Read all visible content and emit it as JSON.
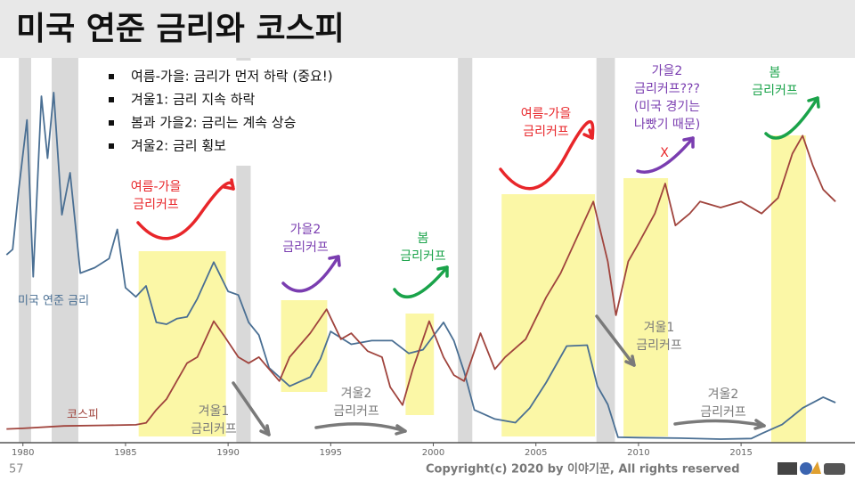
{
  "slide": {
    "title": "미국 연준 금리와 코스피",
    "bullets": [
      "여름-가을: 금리가 먼저 하락 (중요!)",
      "겨울1: 금리 지속 하락",
      "봄과 가을2: 금리는 계속 상승",
      "겨울2: 금리 횡보"
    ],
    "page_number": 57,
    "copyright": "Copyright(c) 2020 by 이야기꾼, All rights reserved"
  },
  "chart_data": {
    "type": "line",
    "xlim": [
      1979.1,
      2019.9
    ],
    "xticks": [
      1980,
      1985,
      1990,
      1995,
      2000,
      2005,
      2010,
      2015
    ],
    "ylim": [
      0,
      21
    ],
    "y2lim": [
      0,
      3200
    ],
    "recessions": [
      [
        1979.8,
        1980.4
      ],
      [
        1981.4,
        1982.7
      ],
      [
        1990.4,
        1991.1
      ],
      [
        2001.2,
        2001.9
      ],
      [
        2007.95,
        2008.85
      ]
    ],
    "highlights": [
      [
        1985.64,
        1989.89
      ],
      [
        1992.58,
        1994.83
      ],
      [
        1998.65,
        2000.03
      ],
      [
        2003.33,
        2007.88
      ],
      [
        2009.27,
        2011.44
      ],
      [
        2016.47,
        2018.16
      ]
    ],
    "highlight_color": "#fbf7a6",
    "recession_color": "#d9d9d9",
    "series": [
      {
        "name": "미국 연준 금리",
        "color": "#4a6f93",
        "x": [
          1979.2,
          1979.5,
          1979.8,
          1980.2,
          1980.5,
          1980.9,
          1981.2,
          1981.5,
          1981.9,
          1982.3,
          1982.8,
          1983.5,
          1984.2,
          1984.6,
          1985,
          1985.5,
          1986,
          1986.5,
          1987,
          1987.5,
          1988,
          1988.5,
          1989.3,
          1990,
          1990.5,
          1991,
          1991.5,
          1992,
          1993,
          1994,
          1994.5,
          1995,
          1996,
          1997,
          1998,
          1998.8,
          1999.5,
          2000.5,
          2001,
          2001.5,
          2002,
          2003,
          2004,
          2004.7,
          2005.5,
          2006.5,
          2007.5,
          2008,
          2008.5,
          2009,
          2010,
          2012,
          2014,
          2015.5,
          2016,
          2017,
          2018,
          2019,
          2019.6
        ],
        "values": [
          10.2,
          10.5,
          13.8,
          17.6,
          9,
          18.9,
          15.5,
          19.1,
          12.4,
          14.7,
          9.2,
          9.5,
          10,
          11.6,
          8.4,
          7.9,
          8.5,
          6.5,
          6.4,
          6.7,
          6.8,
          7.8,
          9.8,
          8.2,
          8,
          6.5,
          5.8,
          4,
          3,
          3.5,
          4.5,
          6,
          5.3,
          5.5,
          5.5,
          4.8,
          5,
          6.5,
          5.5,
          3.8,
          1.7,
          1.2,
          1,
          1.8,
          3.2,
          5.2,
          5.25,
          3,
          2,
          0.2,
          0.18,
          0.15,
          0.1,
          0.13,
          0.4,
          0.9,
          1.8,
          2.4,
          2.1
        ]
      },
      {
        "name": "코스피",
        "color": "#a0443d",
        "axis": "y2",
        "x": [
          1979.2,
          1980,
          1982,
          1984,
          1985.5,
          1986,
          1986.5,
          1987,
          1987.5,
          1988,
          1988.5,
          1989.3,
          1989.8,
          1990.5,
          1991,
          1991.5,
          1992,
          1992.5,
          1993,
          1994,
          1994.8,
          1995.5,
          1996,
          1996.8,
          1997.5,
          1997.9,
          1998.5,
          1999,
          1999.8,
          2000.5,
          2001,
          2001.5,
          2002.3,
          2003,
          2003.5,
          2004.5,
          2005.5,
          2006.2,
          2007,
          2007.8,
          2008.5,
          2008.9,
          2009.5,
          2010,
          2010.8,
          2011.3,
          2011.8,
          2012.5,
          2013,
          2014,
          2015,
          2016,
          2016.8,
          2017.5,
          2018,
          2018.5,
          2019,
          2019.6
        ],
        "values": [
          100,
          105,
          125,
          130,
          135,
          150,
          260,
          350,
          500,
          650,
          700,
          1000,
          880,
          700,
          650,
          700,
          600,
          500,
          700,
          900,
          1100,
          850,
          900,
          750,
          700,
          450,
          300,
          600,
          1000,
          700,
          550,
          500,
          900,
          600,
          700,
          850,
          1200,
          1400,
          1700,
          2000,
          1500,
          1050,
          1500,
          1650,
          1900,
          2150,
          1800,
          1900,
          2000,
          1950,
          2000,
          1900,
          2030,
          2400,
          2550,
          2300,
          2100,
          2000
        ]
      }
    ],
    "annotations": [
      {
        "lines": [
          "여름-가을",
          "금리커프"
        ],
        "color": "#e8262a"
      },
      {
        "lines": [
          "가을2",
          "금리커프"
        ],
        "color": "#7a3db0"
      },
      {
        "lines": [
          "봄",
          "금리커프"
        ],
        "color": "#1aa34a"
      },
      {
        "lines": [
          "여름-가을",
          "금리커프"
        ],
        "color": "#e8262a"
      },
      {
        "lines": [
          "가을2",
          "금리커프???",
          "(미국 경기는",
          "나빴기 때문)"
        ],
        "color": "#7a3db0"
      },
      {
        "lines": [
          "봄",
          "금리커프"
        ],
        "color": "#1aa34a"
      },
      {
        "lines": [
          "겨울1",
          "금리커프"
        ],
        "color": "#7a7a7a"
      },
      {
        "lines": [
          "겨울2",
          "금리커프"
        ],
        "color": "#7a7a7a"
      },
      {
        "lines": [
          "겨울1",
          "금리커프"
        ],
        "color": "#7a7a7a"
      },
      {
        "lines": [
          "겨울2",
          "금리커프"
        ],
        "color": "#7a7a7a"
      },
      {
        "lines": [
          "X"
        ],
        "color": "#e8262a"
      }
    ]
  }
}
